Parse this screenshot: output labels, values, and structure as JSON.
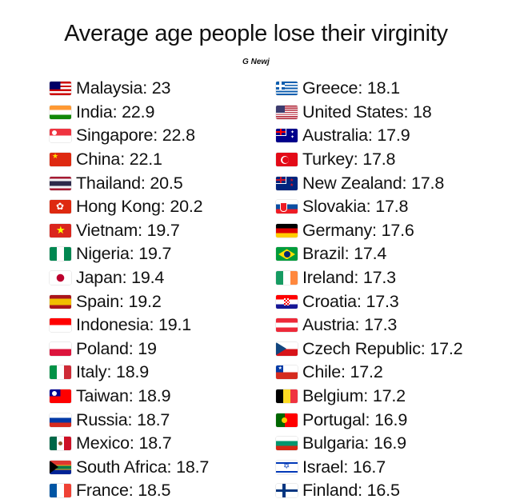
{
  "title": "Average age people lose their virginity",
  "source": "G Newj",
  "left_column": [
    {
      "country": "Malaysia",
      "value": "23",
      "flag": "malaysia-flag-icon",
      "colors": [
        "#cc0001",
        "#ffffff",
        "#010066",
        "#ffcc00"
      ]
    },
    {
      "country": "India",
      "value": "22.9",
      "flag": "india-flag-icon",
      "colors": [
        "#ff9933",
        "#ffffff",
        "#138808"
      ]
    },
    {
      "country": "Singapore",
      "value": "22.8",
      "flag": "singapore-flag-icon",
      "colors": [
        "#ef3340",
        "#ffffff"
      ]
    },
    {
      "country": "China",
      "value": "22.1",
      "flag": "china-flag-icon",
      "colors": [
        "#de2910",
        "#ffde00"
      ]
    },
    {
      "country": "Thailand",
      "value": "20.5",
      "flag": "thailand-flag-icon",
      "colors": [
        "#a51931",
        "#f4f5f8",
        "#2d2a4a"
      ]
    },
    {
      "country": "Hong Kong",
      "value": "20.2",
      "flag": "hong-kong-flag-icon",
      "colors": [
        "#de2910",
        "#ffffff"
      ]
    },
    {
      "country": "Vietnam",
      "value": "19.7",
      "flag": "vietnam-flag-icon",
      "colors": [
        "#da251d",
        "#ffff00"
      ]
    },
    {
      "country": "Nigeria",
      "value": "19.7",
      "flag": "nigeria-flag-icon",
      "colors": [
        "#008751",
        "#ffffff"
      ]
    },
    {
      "country": "Japan",
      "value": "19.4",
      "flag": "japan-flag-icon",
      "colors": [
        "#ffffff",
        "#bc002d"
      ]
    },
    {
      "country": "Spain",
      "value": "19.2",
      "flag": "spain-flag-icon",
      "colors": [
        "#aa151b",
        "#f1bf00"
      ]
    },
    {
      "country": "Indonesia",
      "value": "19.1",
      "flag": "indonesia-flag-icon",
      "colors": [
        "#ff0000",
        "#ffffff"
      ]
    },
    {
      "country": "Poland",
      "value": "19",
      "flag": "poland-flag-icon",
      "colors": [
        "#ffffff",
        "#dc143c"
      ]
    },
    {
      "country": "Italy",
      "value": "18.9",
      "flag": "italy-flag-icon",
      "colors": [
        "#009246",
        "#ffffff",
        "#ce2b37"
      ]
    },
    {
      "country": "Taiwan",
      "value": "18.9",
      "flag": "taiwan-flag-icon",
      "colors": [
        "#fe0000",
        "#000095",
        "#ffffff"
      ]
    },
    {
      "country": "Russia",
      "value": "18.7",
      "flag": "russia-flag-icon",
      "colors": [
        "#ffffff",
        "#0039a6",
        "#d52b1e"
      ]
    },
    {
      "country": "Mexico",
      "value": "18.7",
      "flag": "mexico-flag-icon",
      "colors": [
        "#006847",
        "#ffffff",
        "#ce1126"
      ]
    },
    {
      "country": "South Africa",
      "value": "18.7",
      "flag": "south-africa-flag-icon",
      "colors": [
        "#007a4d",
        "#ffb612",
        "#000000",
        "#de3831",
        "#002395"
      ]
    },
    {
      "country": "France",
      "value": "18.5",
      "flag": "france-flag-icon",
      "colors": [
        "#0055a4",
        "#ffffff",
        "#ef4135"
      ]
    }
  ],
  "right_column": [
    {
      "country": "Greece",
      "value": "18.1",
      "flag": "greece-flag-icon",
      "colors": [
        "#0d5eaf",
        "#ffffff"
      ]
    },
    {
      "country": "United States",
      "value": "18",
      "flag": "united-states-flag-icon",
      "colors": [
        "#b22234",
        "#ffffff",
        "#3c3b6e"
      ]
    },
    {
      "country": "Australia",
      "value": "17.9",
      "flag": "australia-flag-icon",
      "colors": [
        "#00008b",
        "#ffffff",
        "#ff0000"
      ]
    },
    {
      "country": "Turkey",
      "value": "17.8",
      "flag": "turkey-flag-icon",
      "colors": [
        "#e30a17",
        "#ffffff"
      ]
    },
    {
      "country": "New Zealand",
      "value": "17.8",
      "flag": "new-zealand-flag-icon",
      "colors": [
        "#00247d",
        "#ffffff",
        "#cc142b"
      ]
    },
    {
      "country": "Slovakia",
      "value": "17.8",
      "flag": "slovakia-flag-icon",
      "colors": [
        "#ffffff",
        "#0b4ea2",
        "#ee1c25"
      ]
    },
    {
      "country": "Germany",
      "value": "17.6",
      "flag": "germany-flag-icon",
      "colors": [
        "#000000",
        "#dd0000",
        "#ffce00"
      ]
    },
    {
      "country": "Brazil",
      "value": "17.4",
      "flag": "brazil-flag-icon",
      "colors": [
        "#009c3b",
        "#ffdf00",
        "#002776"
      ]
    },
    {
      "country": "Ireland",
      "value": "17.3",
      "flag": "ireland-flag-icon",
      "colors": [
        "#169b62",
        "#ffffff",
        "#ff883e"
      ]
    },
    {
      "country": "Croatia",
      "value": "17.3",
      "flag": "croatia-flag-icon",
      "colors": [
        "#ff0000",
        "#ffffff",
        "#171796"
      ]
    },
    {
      "country": "Austria",
      "value": "17.3",
      "flag": "austria-flag-icon",
      "colors": [
        "#ed2939",
        "#ffffff"
      ]
    },
    {
      "country": "Czech Republic",
      "value": "17.2",
      "flag": "czech-republic-flag-icon",
      "colors": [
        "#ffffff",
        "#d7141a",
        "#11457e"
      ]
    },
    {
      "country": "Chile",
      "value": "17.2",
      "flag": "chile-flag-icon",
      "colors": [
        "#0039a6",
        "#ffffff",
        "#d52b1e"
      ]
    },
    {
      "country": "Belgium",
      "value": "17.2",
      "flag": "belgium-flag-icon",
      "colors": [
        "#000000",
        "#fdda24",
        "#ef3340"
      ]
    },
    {
      "country": "Portugal",
      "value": "16.9",
      "flag": "portugal-flag-icon",
      "colors": [
        "#006600",
        "#ff0000",
        "#ffcc00"
      ]
    },
    {
      "country": "Bulgaria",
      "value": "16.9",
      "flag": "bulgaria-flag-icon",
      "colors": [
        "#ffffff",
        "#00966e",
        "#d62612"
      ]
    },
    {
      "country": "Israel",
      "value": "16.7",
      "flag": "israel-flag-icon",
      "colors": [
        "#ffffff",
        "#0038b8"
      ]
    },
    {
      "country": "Finland",
      "value": "16.5",
      "flag": "finland-flag-icon",
      "colors": [
        "#ffffff",
        "#003580"
      ]
    }
  ]
}
